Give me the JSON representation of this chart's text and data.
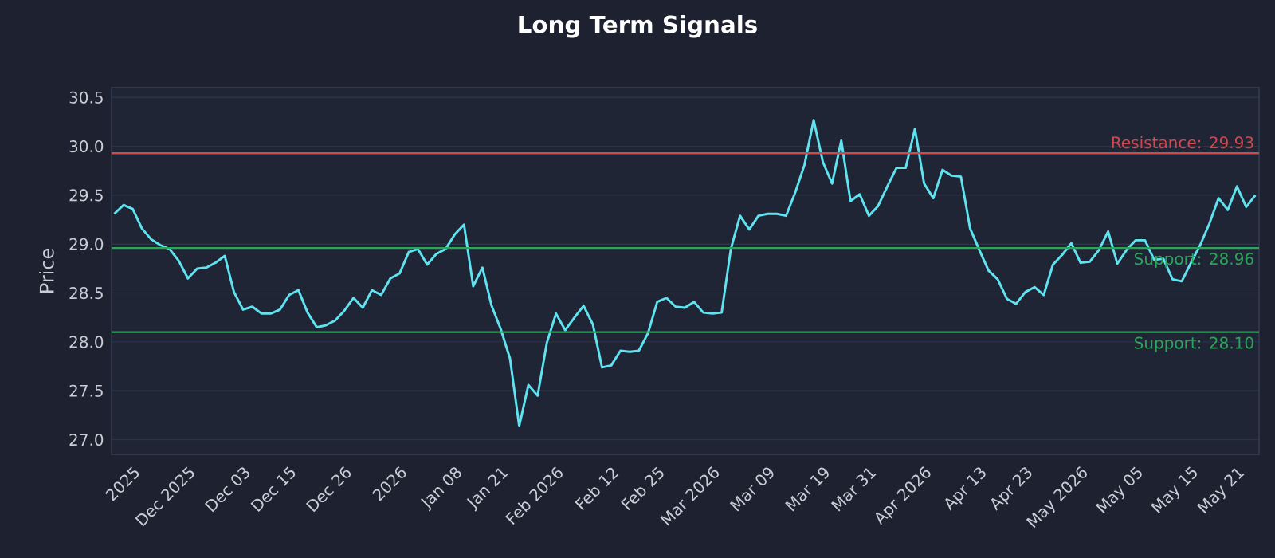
{
  "chart_data": {
    "type": "line",
    "title": "Long Term Signals",
    "ylabel": "Price",
    "categories": [
      null,
      null,
      "2025",
      null,
      null,
      null,
      null,
      null,
      "Dec 2025",
      null,
      null,
      null,
      null,
      null,
      "Dec 03",
      null,
      null,
      null,
      null,
      "Dec 15",
      null,
      null,
      null,
      null,
      null,
      "Dec 26",
      null,
      null,
      null,
      null,
      null,
      "2026",
      null,
      null,
      null,
      null,
      null,
      "Jan 08",
      null,
      null,
      null,
      null,
      "Jan 21",
      null,
      null,
      null,
      null,
      null,
      "Feb 2026",
      null,
      null,
      null,
      null,
      null,
      "Feb 12",
      null,
      null,
      null,
      null,
      "Feb 25",
      null,
      null,
      null,
      null,
      null,
      "Mar 2026",
      null,
      null,
      null,
      null,
      null,
      "Mar 09",
      null,
      null,
      null,
      null,
      null,
      "Mar 19",
      null,
      null,
      null,
      null,
      "Mar 31",
      null,
      null,
      null,
      null,
      null,
      "Apr 2026",
      null,
      null,
      null,
      null,
      null,
      "Apr 13",
      null,
      null,
      null,
      null,
      "Apr 23",
      null,
      null,
      null,
      null,
      null,
      "May 2026",
      null,
      null,
      null,
      null,
      null,
      "May 05",
      null,
      null,
      null,
      null,
      null,
      "May 15",
      null,
      null,
      null,
      null,
      "May 21",
      null,
      null
    ],
    "values": [
      29.31,
      29.4,
      29.36,
      29.16,
      29.05,
      28.99,
      28.95,
      28.83,
      28.65,
      28.75,
      28.76,
      28.81,
      28.88,
      28.51,
      28.33,
      28.36,
      28.29,
      28.29,
      28.33,
      28.48,
      28.53,
      28.3,
      28.15,
      28.17,
      28.22,
      28.32,
      28.45,
      28.35,
      28.53,
      28.48,
      28.65,
      28.7,
      28.92,
      28.95,
      28.79,
      28.9,
      28.95,
      29.1,
      29.2,
      28.57,
      28.76,
      28.37,
      28.13,
      27.83,
      27.14,
      27.56,
      27.45,
      27.99,
      28.29,
      28.12,
      28.25,
      28.37,
      28.18,
      27.74,
      27.76,
      27.91,
      27.9,
      27.91,
      28.09,
      28.41,
      28.45,
      28.36,
      28.35,
      28.41,
      28.3,
      28.29,
      28.3,
      28.95,
      29.29,
      29.15,
      29.29,
      29.31,
      29.31,
      29.29,
      29.53,
      29.81,
      30.27,
      29.84,
      29.62,
      30.06,
      29.44,
      29.51,
      29.29,
      29.39,
      29.59,
      29.78,
      29.78,
      30.18,
      29.62,
      29.47,
      29.76,
      29.7,
      29.69,
      29.16,
      28.94,
      28.73,
      28.64,
      28.44,
      28.39,
      28.51,
      28.56,
      28.48,
      28.79,
      28.89,
      29.01,
      28.81,
      28.82,
      28.94,
      29.13,
      28.8,
      28.94,
      29.04,
      29.04,
      28.84,
      28.85,
      28.64,
      28.62,
      28.81,
      28.99,
      29.21,
      29.47,
      29.35,
      29.59,
      29.38,
      29.5
    ],
    "color": "#5fe3f0",
    "line_style": "solid",
    "grid": "y",
    "ylim": [
      26.85,
      30.6
    ],
    "yticks": [
      {
        "value": 27,
        "label": "27.0"
      },
      {
        "value": 27.5,
        "label": "27.5"
      },
      {
        "value": 28,
        "label": "28.0"
      },
      {
        "value": 28.5,
        "label": "28.5"
      },
      {
        "value": 29,
        "label": "29.0"
      },
      {
        "value": 29.5,
        "label": "29.5"
      },
      {
        "value": 30,
        "label": "30.0"
      },
      {
        "value": 30.5,
        "label": "30.5"
      }
    ],
    "ref_lines": [
      {
        "axis": "y",
        "value": 29.93,
        "label": "Resistance: 29.93",
        "color": "#d0494c"
      },
      {
        "axis": "y",
        "value": 28.96,
        "label": "Support: 28.96",
        "color": "#2aa55a"
      },
      {
        "axis": "y",
        "value": 28.1,
        "label": "Support: 28.10",
        "color": "#2aa55a"
      }
    ]
  }
}
